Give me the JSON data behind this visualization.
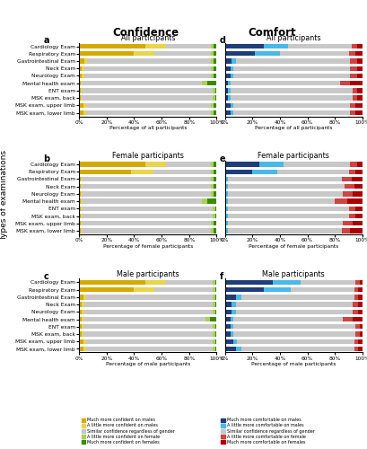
{
  "categories": [
    "MSK exam, lower limb",
    "MSK exam, upper limb",
    "MSK exam, back",
    "ENT exam",
    "Mental health exam",
    "Neurology Exam",
    "Neck Exam",
    "Gastrointestinal Exam",
    "Respiratory Exam",
    "Cardiology Exam"
  ],
  "title_confidence": "Confidence",
  "title_comfort": "Comfort",
  "subplot_titles": [
    "All participants",
    "Female participants",
    "Male participants"
  ],
  "subplot_labels_left": [
    "a",
    "b",
    "c"
  ],
  "subplot_labels_right": [
    "d",
    "e",
    "f"
  ],
  "ylabel": "Types of examinations",
  "confidence_colors": [
    "#d4aa00",
    "#e8d44d",
    "#c8c8c8",
    "#a8d060",
    "#3a8a00"
  ],
  "comfort_colors": [
    "#1f3d7a",
    "#4ab8e8",
    "#c8c8c8",
    "#cc4444",
    "#aa0000"
  ],
  "confidence_legend": [
    "Much more confident on males",
    "A little more confident on males",
    "Similar confidence regardless of gender",
    "A little more confident on female",
    "Much more confident on females"
  ],
  "comfort_legend": [
    "Much more comfortable on males",
    "A little more comfortable on males",
    "Similar confidence regardless of gender",
    "A little more comfortable on female",
    "Much more comfortable on females"
  ],
  "conf_all": [
    [
      3,
      2,
      91,
      2,
      2
    ],
    [
      3,
      2,
      91,
      2,
      2
    ],
    [
      1,
      1,
      95,
      2,
      1
    ],
    [
      1,
      1,
      95,
      2,
      1
    ],
    [
      1,
      1,
      87,
      4,
      7
    ],
    [
      2,
      2,
      92,
      2,
      2
    ],
    [
      2,
      2,
      92,
      2,
      2
    ],
    [
      4,
      2,
      90,
      2,
      2
    ],
    [
      40,
      15,
      41,
      2,
      2
    ],
    [
      48,
      15,
      33,
      2,
      2
    ]
  ],
  "conf_female": [
    [
      1,
      1,
      94,
      2,
      2
    ],
    [
      1,
      1,
      94,
      2,
      2
    ],
    [
      1,
      1,
      95,
      2,
      1
    ],
    [
      1,
      1,
      95,
      2,
      1
    ],
    [
      1,
      1,
      87,
      4,
      7
    ],
    [
      1,
      1,
      94,
      2,
      2
    ],
    [
      1,
      1,
      94,
      2,
      2
    ],
    [
      1,
      1,
      94,
      2,
      2
    ],
    [
      38,
      16,
      42,
      2,
      2
    ],
    [
      48,
      15,
      33,
      2,
      2
    ]
  ],
  "conf_male": [
    [
      3,
      2,
      92,
      2,
      1
    ],
    [
      3,
      2,
      92,
      2,
      1
    ],
    [
      2,
      1,
      94,
      2,
      1
    ],
    [
      2,
      1,
      94,
      2,
      1
    ],
    [
      2,
      1,
      89,
      3,
      5
    ],
    [
      2,
      2,
      93,
      2,
      1
    ],
    [
      2,
      2,
      93,
      2,
      1
    ],
    [
      3,
      2,
      92,
      2,
      1
    ],
    [
      40,
      15,
      42,
      2,
      1
    ],
    [
      48,
      15,
      34,
      2,
      1
    ]
  ],
  "comf_all": [
    [
      4,
      2,
      85,
      4,
      5
    ],
    [
      4,
      2,
      85,
      4,
      5
    ],
    [
      2,
      2,
      89,
      3,
      4
    ],
    [
      2,
      2,
      89,
      3,
      4
    ],
    [
      2,
      2,
      80,
      7,
      9
    ],
    [
      4,
      2,
      85,
      5,
      4
    ],
    [
      4,
      2,
      85,
      5,
      4
    ],
    [
      5,
      3,
      83,
      5,
      4
    ],
    [
      22,
      18,
      50,
      5,
      5
    ],
    [
      28,
      18,
      46,
      4,
      4
    ]
  ],
  "comf_female": [
    [
      1,
      1,
      83,
      6,
      9
    ],
    [
      1,
      1,
      84,
      7,
      7
    ],
    [
      1,
      1,
      88,
      5,
      5
    ],
    [
      1,
      1,
      88,
      5,
      5
    ],
    [
      1,
      1,
      78,
      9,
      11
    ],
    [
      1,
      1,
      84,
      7,
      7
    ],
    [
      1,
      1,
      85,
      7,
      6
    ],
    [
      1,
      1,
      83,
      7,
      8
    ],
    [
      20,
      18,
      52,
      5,
      5
    ],
    [
      25,
      18,
      48,
      5,
      4
    ]
  ],
  "comf_male": [
    [
      8,
      4,
      82,
      3,
      3
    ],
    [
      6,
      3,
      85,
      3,
      3
    ],
    [
      4,
      2,
      89,
      3,
      2
    ],
    [
      4,
      2,
      89,
      3,
      2
    ],
    [
      4,
      2,
      80,
      7,
      7
    ],
    [
      5,
      3,
      85,
      4,
      3
    ],
    [
      5,
      3,
      85,
      4,
      3
    ],
    [
      8,
      4,
      82,
      3,
      3
    ],
    [
      28,
      20,
      46,
      3,
      3
    ],
    [
      35,
      20,
      40,
      3,
      2
    ]
  ]
}
